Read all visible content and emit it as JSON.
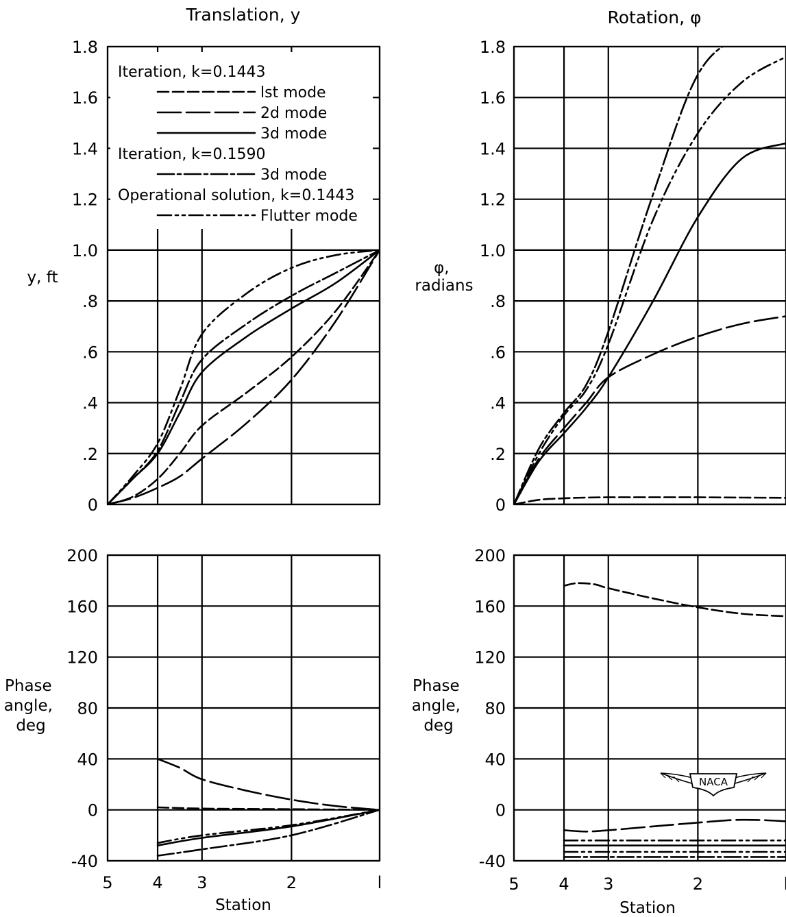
{
  "chart_data": [
    {
      "id": "translation",
      "type": "line",
      "title": "Translation, y",
      "xlabel": "",
      "ylabel": "y, ft",
      "xticks": [
        "5",
        "4",
        "3",
        "2",
        "l"
      ],
      "xlim": [
        5,
        1
      ],
      "ylim": [
        0,
        1.8
      ],
      "yticks": [
        "0",
        ".2",
        ".4",
        ".6",
        ".8",
        "1.0",
        "1.2",
        "1.4",
        "1.6",
        "1.8"
      ],
      "grid": true,
      "legend": {
        "placement": "top-left",
        "entries": [
          {
            "type": "header",
            "text": "Iteration, k=0.1443"
          },
          {
            "type": "entry",
            "text": "lst mode",
            "series": "iter1"
          },
          {
            "type": "entry",
            "text": "2d mode",
            "series": "iter2"
          },
          {
            "type": "entry",
            "text": "3d mode",
            "series": "iter3"
          },
          {
            "type": "header",
            "text": "Iteration, k=0.1590"
          },
          {
            "type": "entry",
            "text": "3d mode",
            "series": "iter3b"
          },
          {
            "type": "header",
            "text": "Operational solution, k=0.1443"
          },
          {
            "type": "entry",
            "text": "Flutter mode",
            "series": "flutter"
          }
        ]
      },
      "series": [
        {
          "key": "iter1",
          "name": "lst mode",
          "x": [
            5,
            4.5,
            4,
            3.5,
            3,
            2.5,
            2,
            1.5,
            1
          ],
          "y": [
            0,
            0.03,
            0.1,
            0.2,
            0.31,
            0.44,
            0.58,
            0.76,
            1.0
          ]
        },
        {
          "key": "iter2",
          "name": "2d mode",
          "x": [
            5,
            4.5,
            4,
            3.5,
            3,
            2.5,
            2,
            1.5,
            1
          ],
          "y": [
            0,
            0.025,
            0.065,
            0.11,
            0.18,
            0.32,
            0.49,
            0.72,
            1.0
          ]
        },
        {
          "key": "iter3",
          "name": "3d mode",
          "x": [
            5,
            4.5,
            4,
            3.5,
            3,
            2.5,
            2,
            1.5,
            1
          ],
          "y": [
            0,
            0.1,
            0.2,
            0.36,
            0.52,
            0.66,
            0.77,
            0.87,
            1.0
          ]
        },
        {
          "key": "iter3b",
          "name": "3d mode",
          "x": [
            5,
            4.5,
            4,
            3.5,
            3,
            2.5,
            2,
            1.5,
            1
          ],
          "y": [
            0,
            0.1,
            0.21,
            0.4,
            0.57,
            0.71,
            0.82,
            0.91,
            1.0
          ]
        },
        {
          "key": "flutter",
          "name": "Flutter mode",
          "x": [
            5,
            4.5,
            4,
            3.5,
            3,
            2.5,
            2,
            1.5,
            1
          ],
          "y": [
            0,
            0.11,
            0.24,
            0.45,
            0.67,
            0.83,
            0.93,
            0.98,
            1.0
          ]
        }
      ]
    },
    {
      "id": "rotation",
      "type": "line",
      "title": "Rotation, φ",
      "xlabel": "",
      "ylabel": "φ, radians",
      "xticks": [
        "5",
        "4",
        "3",
        "2",
        "l"
      ],
      "xlim": [
        5,
        1
      ],
      "ylim": [
        0,
        1.8
      ],
      "yticks": [
        "0",
        ".2",
        ".4",
        ".6",
        ".8",
        "1.0",
        "1.2",
        "1.4",
        "1.6",
        "1.8"
      ],
      "grid": true,
      "series": [
        {
          "key": "iter1",
          "name": "lst mode",
          "x": [
            5,
            4.5,
            4,
            3.5,
            3,
            2.5,
            2,
            1.5,
            1
          ],
          "y": [
            0,
            0.018,
            0.024,
            0.027,
            0.028,
            0.028,
            0.028,
            0.027,
            0.026
          ]
        },
        {
          "key": "iter2",
          "name": "2d mode",
          "x": [
            5,
            4.5,
            4,
            3.5,
            3,
            2.5,
            2,
            1.5,
            1
          ],
          "y": [
            0,
            0.18,
            0.3,
            0.4,
            0.5,
            0.59,
            0.66,
            0.71,
            0.74
          ]
        },
        {
          "key": "iter3",
          "name": "3d mode",
          "x": [
            5,
            4.5,
            4,
            3.5,
            3,
            2.5,
            2,
            1.5,
            1
          ],
          "y": [
            0,
            0.17,
            0.28,
            0.38,
            0.5,
            0.8,
            1.13,
            1.36,
            1.42
          ]
        },
        {
          "key": "iter3b",
          "name": "3d mode",
          "x": [
            5,
            4.5,
            4,
            3.5,
            3,
            2.5,
            2,
            1.5,
            1
          ],
          "y": [
            0,
            0.22,
            0.36,
            0.47,
            0.68,
            1.22,
            1.69,
            1.84,
            1.86
          ]
        },
        {
          "key": "flutter",
          "name": "Flutter mode",
          "x": [
            5,
            4.5,
            4,
            3.5,
            3,
            2.5,
            2,
            1.5,
            1
          ],
          "y": [
            0,
            0.2,
            0.35,
            0.45,
            0.63,
            1.12,
            1.46,
            1.66,
            1.76
          ]
        },
        {
          "key": "zero",
          "name": "",
          "x": [
            5,
            4,
            3,
            2,
            1
          ],
          "y": [
            0,
            0,
            0,
            0,
            0
          ]
        }
      ]
    },
    {
      "id": "translation-phase",
      "type": "line",
      "title": "",
      "xlabel": "Station",
      "ylabel": "Phase angle, deg",
      "xticks": [
        "5",
        "4",
        "3",
        "2",
        "l"
      ],
      "xlim": [
        5,
        1
      ],
      "ylim": [
        -40,
        200
      ],
      "yticks": [
        "-40",
        "0",
        "40",
        "80",
        "120",
        "160",
        "200"
      ],
      "grid": true,
      "series": [
        {
          "key": "iter1",
          "name": "lst mode",
          "x": [
            4,
            3,
            2,
            1
          ],
          "y": [
            2,
            1,
            0.5,
            0
          ]
        },
        {
          "key": "iter2",
          "name": "2d mode",
          "x": [
            4,
            3.5,
            3,
            2.5,
            2,
            1.5,
            1
          ],
          "y": [
            40,
            33,
            24,
            15,
            8,
            3,
            0
          ]
        },
        {
          "key": "iter3",
          "name": "3d mode",
          "x": [
            4,
            3,
            2,
            1
          ],
          "y": [
            -28,
            -22,
            -13,
            0
          ]
        },
        {
          "key": "iter3b",
          "name": "3d mode",
          "x": [
            4,
            3,
            2,
            1
          ],
          "y": [
            -36,
            -31,
            -20,
            0
          ]
        },
        {
          "key": "flutter",
          "name": "Flutter mode",
          "x": [
            4,
            3,
            2,
            1
          ],
          "y": [
            -26,
            -20,
            -12,
            0
          ]
        }
      ]
    },
    {
      "id": "rotation-phase",
      "type": "line",
      "title": "",
      "xlabel": "Station",
      "ylabel": "Phase angle, deg",
      "xticks": [
        "5",
        "4",
        "3",
        "2",
        "l"
      ],
      "xlim": [
        5,
        1
      ],
      "ylim": [
        -40,
        200
      ],
      "yticks": [
        "-40",
        "0",
        "40",
        "80",
        "120",
        "160",
        "200"
      ],
      "grid": true,
      "logo_text": "NACA",
      "series": [
        {
          "key": "iter1",
          "name": "lst mode",
          "x": [
            4,
            3.7,
            3.3,
            3,
            2.5,
            2,
            1.5,
            1
          ],
          "y": [
            176,
            178,
            177,
            174,
            166,
            159,
            154,
            152
          ]
        },
        {
          "key": "iter2",
          "name": "2d mode",
          "x": [
            4,
            3.5,
            3,
            2.5,
            2,
            1.6,
            1.3,
            1
          ],
          "y": [
            -16,
            -17,
            -16,
            -13,
            -10,
            -8,
            -8,
            -9
          ]
        },
        {
          "key": "iter3",
          "name": "3d mode",
          "x": [
            4,
            1
          ],
          "y": [
            -28,
            -28
          ]
        },
        {
          "key": "iter3b",
          "name": "3d mode",
          "x": [
            4,
            1
          ],
          "y": [
            -37,
            -37
          ]
        },
        {
          "key": "flutter",
          "name": "Flutter mode",
          "x": [
            4,
            1
          ],
          "y": [
            -24,
            -24
          ]
        },
        {
          "key": "flutter2",
          "name": "Flutter mode",
          "x": [
            4,
            1
          ],
          "y": [
            -33,
            -33
          ]
        }
      ]
    }
  ],
  "styles": {
    "iter1": "16,6",
    "iter2": "34,8",
    "iter3": "",
    "iter3b": "24,5,5,5",
    "flutter": "20,6,4,6,4,6",
    "flutter2": "20,6,4,6,4,6",
    "zero": ""
  }
}
